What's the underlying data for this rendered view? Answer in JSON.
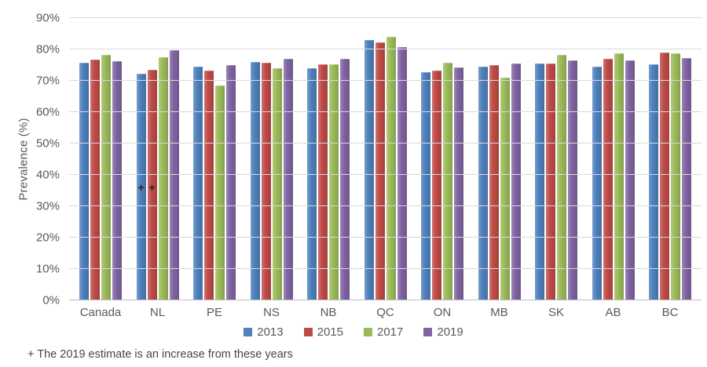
{
  "footnote": "+ The 2019 estimate is an increase from these years",
  "colors": {
    "gridline": "#D9D9D9",
    "baseline": "#BFBFBF",
    "axis_text": "#595959",
    "footnote_text": "#454545",
    "background": "#FFFFFF"
  },
  "chart_data": {
    "type": "bar",
    "title": "",
    "xlabel": "",
    "ylabel": "Prevalence (%)",
    "ylim": [
      0,
      90
    ],
    "ytick_step": 10,
    "ytick_suffix": "%",
    "grid": true,
    "legend_position": "bottom",
    "categories": [
      "Canada",
      "NL",
      "PE",
      "NS",
      "NB",
      "QC",
      "ON",
      "MB",
      "SK",
      "AB",
      "BC"
    ],
    "series": [
      {
        "name": "2013",
        "color": "#4E81BD",
        "values": [
          75.7,
          72.3,
          74.6,
          76.0,
          74.0,
          83.0,
          72.8,
          74.6,
          75.5,
          74.6,
          75.3
        ]
      },
      {
        "name": "2015",
        "color": "#BF4B48",
        "values": [
          76.8,
          73.4,
          73.2,
          75.7,
          75.2,
          82.3,
          73.2,
          75.1,
          75.4,
          77.0,
          79.0
        ]
      },
      {
        "name": "2017",
        "color": "#9BBB59",
        "values": [
          78.2,
          77.5,
          68.4,
          73.9,
          75.3,
          84.1,
          75.7,
          70.9,
          78.2,
          78.7,
          78.8
        ]
      },
      {
        "name": "2019",
        "color": "#8064A2",
        "values": [
          76.3,
          79.7,
          75.0,
          76.9,
          77.1,
          80.8,
          74.2,
          75.5,
          76.4,
          76.4,
          77.2
        ]
      }
    ],
    "annotations": [
      {
        "marker": "+",
        "category": "NL",
        "series": "2013",
        "at_value": 36
      },
      {
        "marker": "+",
        "category": "NL",
        "series": "2015",
        "at_value": 36
      }
    ]
  }
}
